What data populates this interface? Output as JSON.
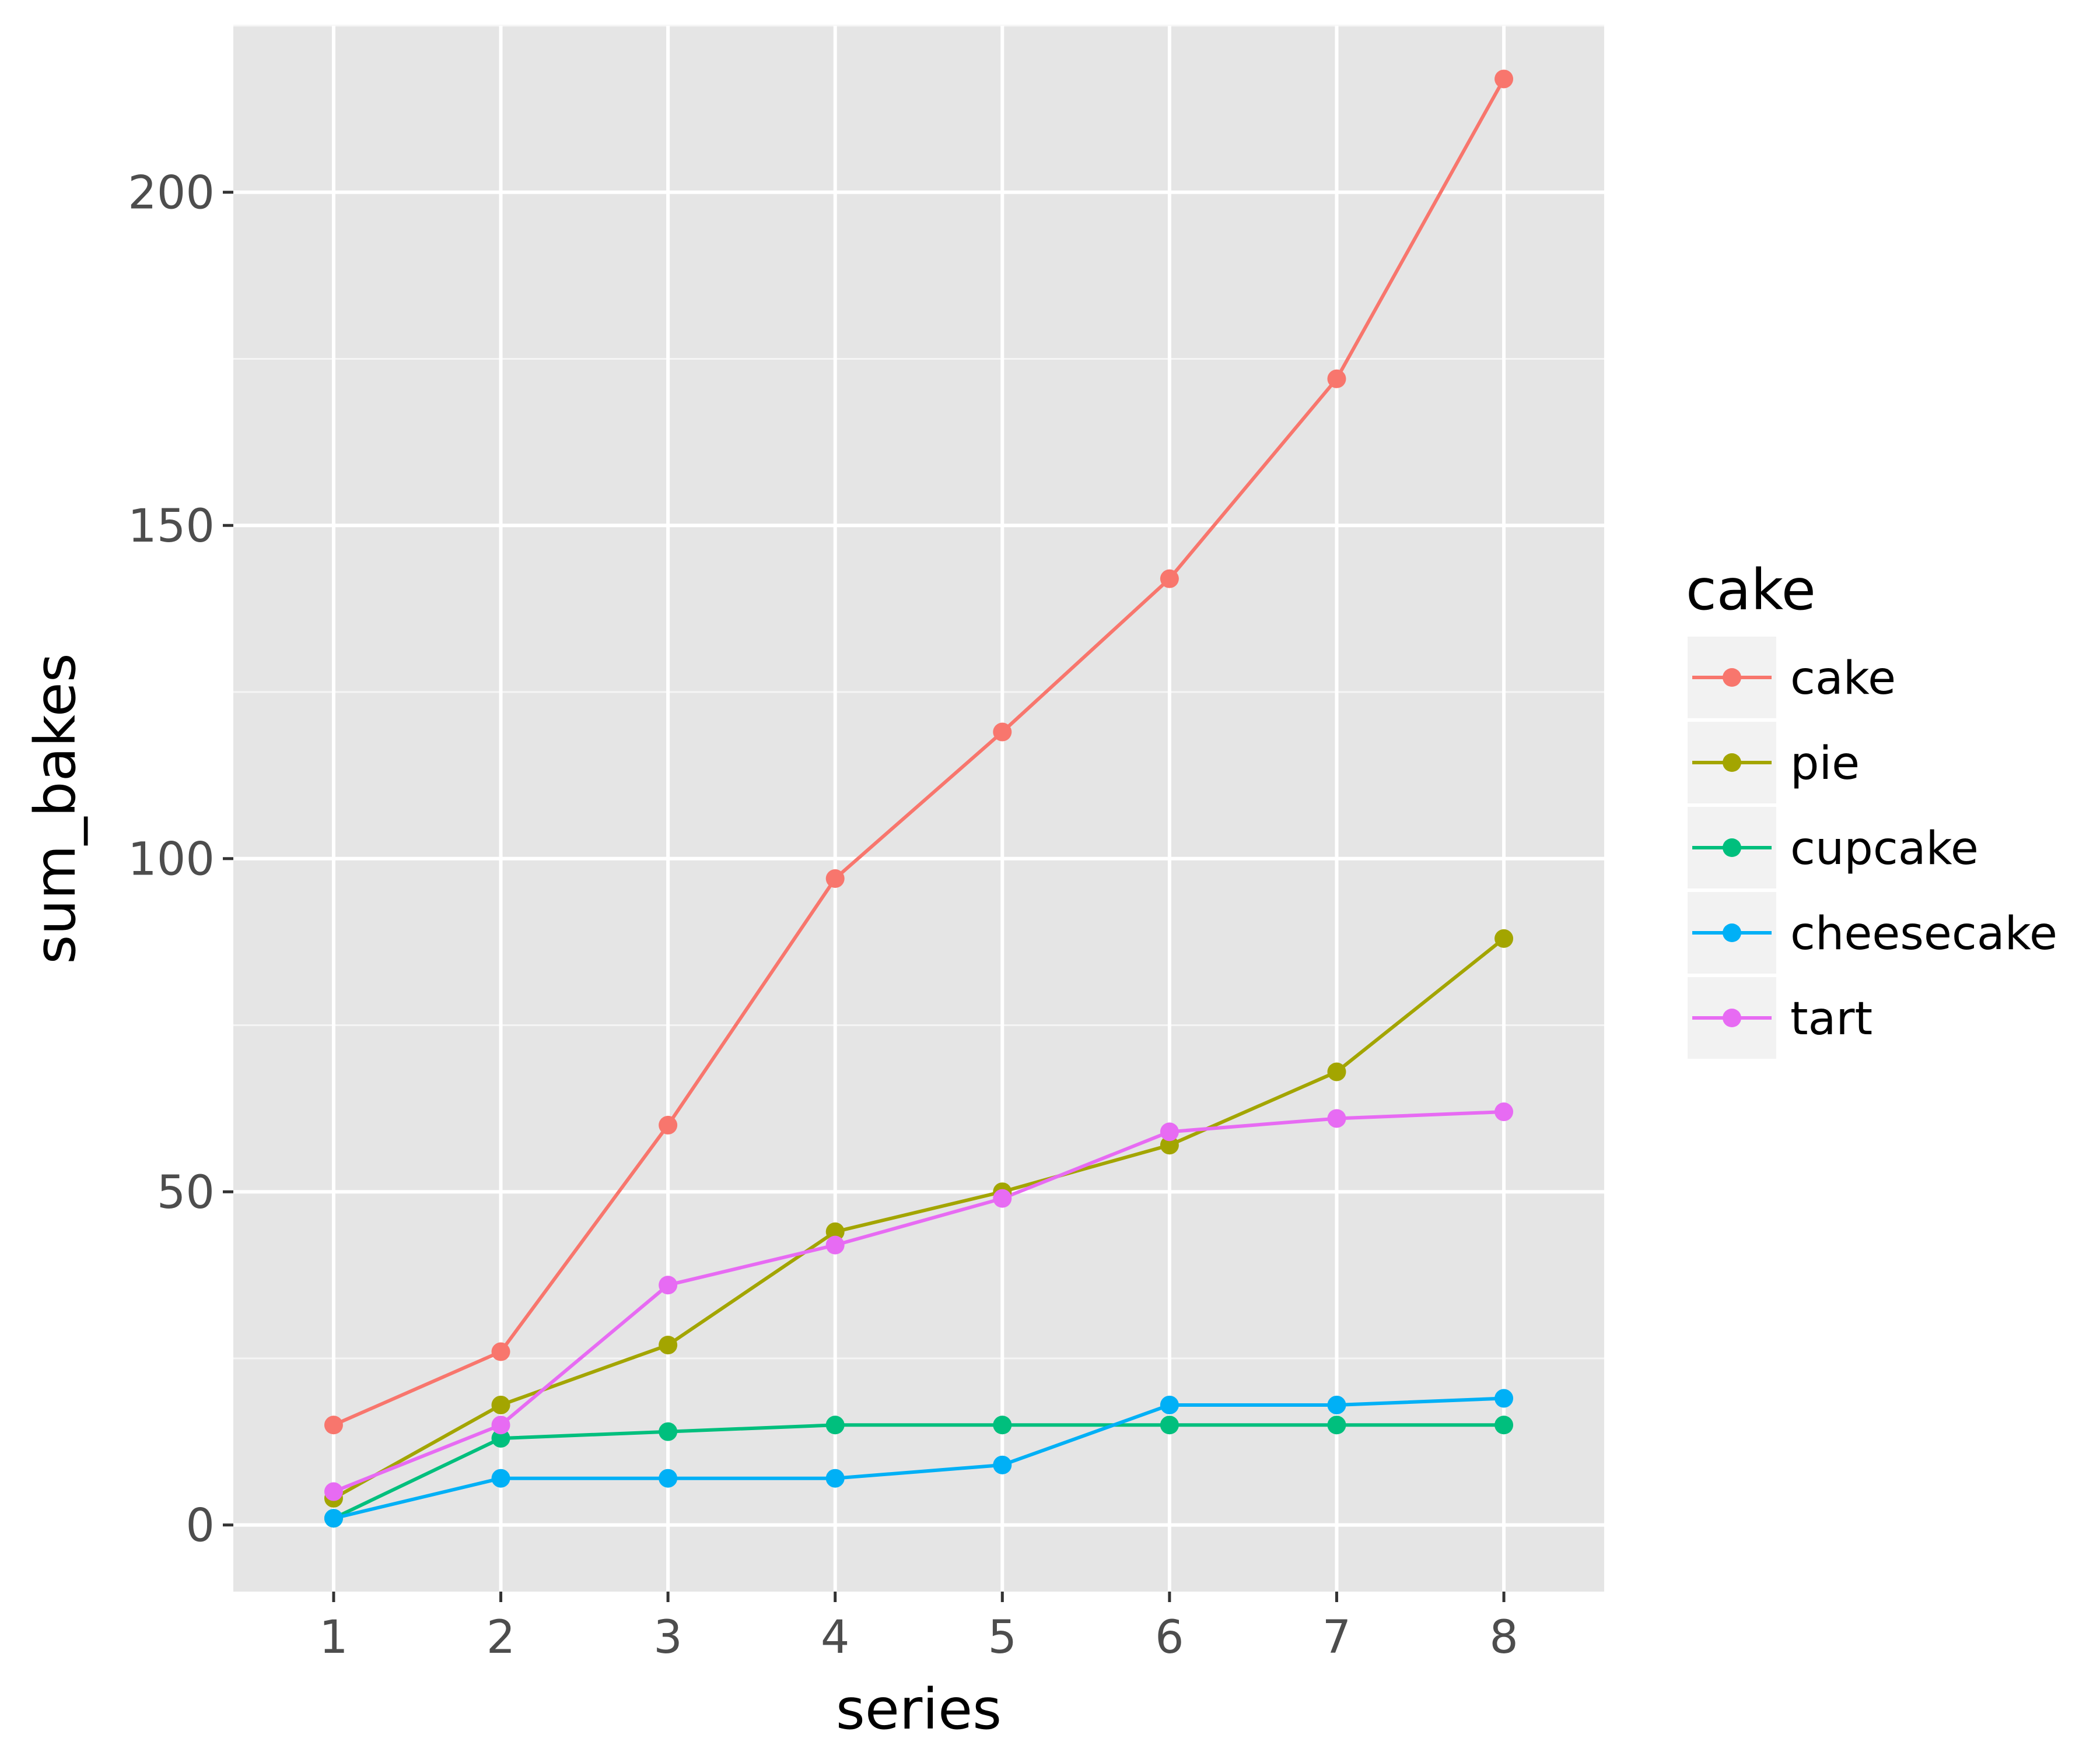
{
  "chart_data": {
    "type": "line",
    "xlabel": "series",
    "ylabel": "sum_bakes",
    "x": [
      1,
      2,
      3,
      4,
      5,
      6,
      7,
      8
    ],
    "x_ticks": [
      "1",
      "2",
      "3",
      "4",
      "5",
      "6",
      "7",
      "8"
    ],
    "xlim": [
      0.4,
      8.6
    ],
    "ylim": [
      -10,
      225
    ],
    "y_ticks": [
      0,
      50,
      100,
      150,
      200
    ],
    "y_tick_labels": [
      "0",
      "50",
      "100",
      "150",
      "200"
    ],
    "y_minor_ticks": [
      25,
      75,
      125,
      175,
      225
    ],
    "grid": true,
    "panel_background": "#e5e5e5",
    "legend": {
      "title": "cake",
      "placement": "right"
    },
    "series": [
      {
        "name": "cake",
        "color": "#f8766d",
        "values": [
          15,
          26,
          60,
          97,
          119,
          142,
          172,
          217
        ]
      },
      {
        "name": "pie",
        "color": "#a3a500",
        "values": [
          4,
          18,
          27,
          44,
          50,
          57,
          68,
          88
        ]
      },
      {
        "name": "cupcake",
        "color": "#00bf7d",
        "values": [
          1,
          13,
          14,
          15,
          15,
          15,
          15,
          15
        ]
      },
      {
        "name": "cheesecake",
        "color": "#00b0f6",
        "values": [
          1,
          7,
          7,
          7,
          9,
          18,
          18,
          19
        ]
      },
      {
        "name": "tart",
        "color": "#e76bf3",
        "values": [
          5,
          15,
          36,
          42,
          49,
          59,
          61,
          62
        ]
      }
    ]
  }
}
